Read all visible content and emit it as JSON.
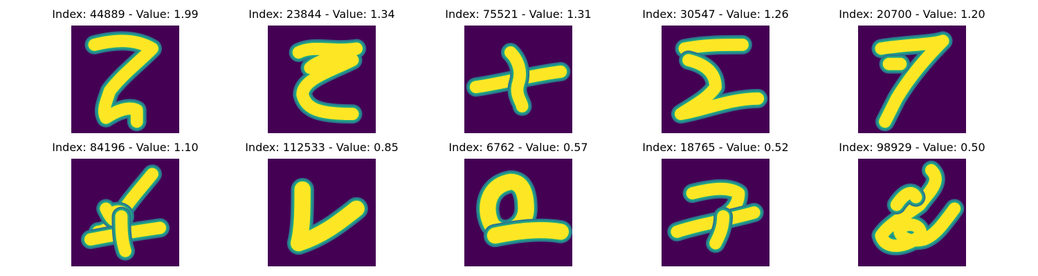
{
  "colors": {
    "background": "#440154",
    "mid_ring": "#20a386",
    "edge_ring": "#2a788e",
    "stroke": "#fde725"
  },
  "panels": [
    {
      "index": "44889",
      "value": "1.99",
      "title": "Index: 44889 - Value: 1.99",
      "glyph": "2"
    },
    {
      "index": "23844",
      "value": "1.34",
      "title": "Index: 23844 - Value: 1.34",
      "glyph": "2"
    },
    {
      "index": "75521",
      "value": "1.31",
      "title": "Index: 75521 - Value: 1.31",
      "glyph": "cross"
    },
    {
      "index": "30547",
      "value": "1.26",
      "title": "Index: 30547 - Value: 1.26",
      "glyph": "2"
    },
    {
      "index": "20700",
      "value": "1.20",
      "title": "Index: 20700 - Value: 1.20",
      "glyph": "7"
    },
    {
      "index": "84196",
      "value": "1.10",
      "title": "Index: 84196 - Value: 1.10",
      "glyph": "4"
    },
    {
      "index": "112533",
      "value": "0.85",
      "title": "Index: 112533 - Value: 0.85",
      "glyph": "V"
    },
    {
      "index": "6762",
      "value": "0.57",
      "title": "Index: 6762 - Value: 0.57",
      "glyph": "Q"
    },
    {
      "index": "18765",
      "value": "0.52",
      "title": "Index: 18765 - Value: 0.52",
      "glyph": "2"
    },
    {
      "index": "98929",
      "value": "0.50",
      "title": "Index: 98929 - Value: 0.50",
      "glyph": "cursive"
    }
  ]
}
